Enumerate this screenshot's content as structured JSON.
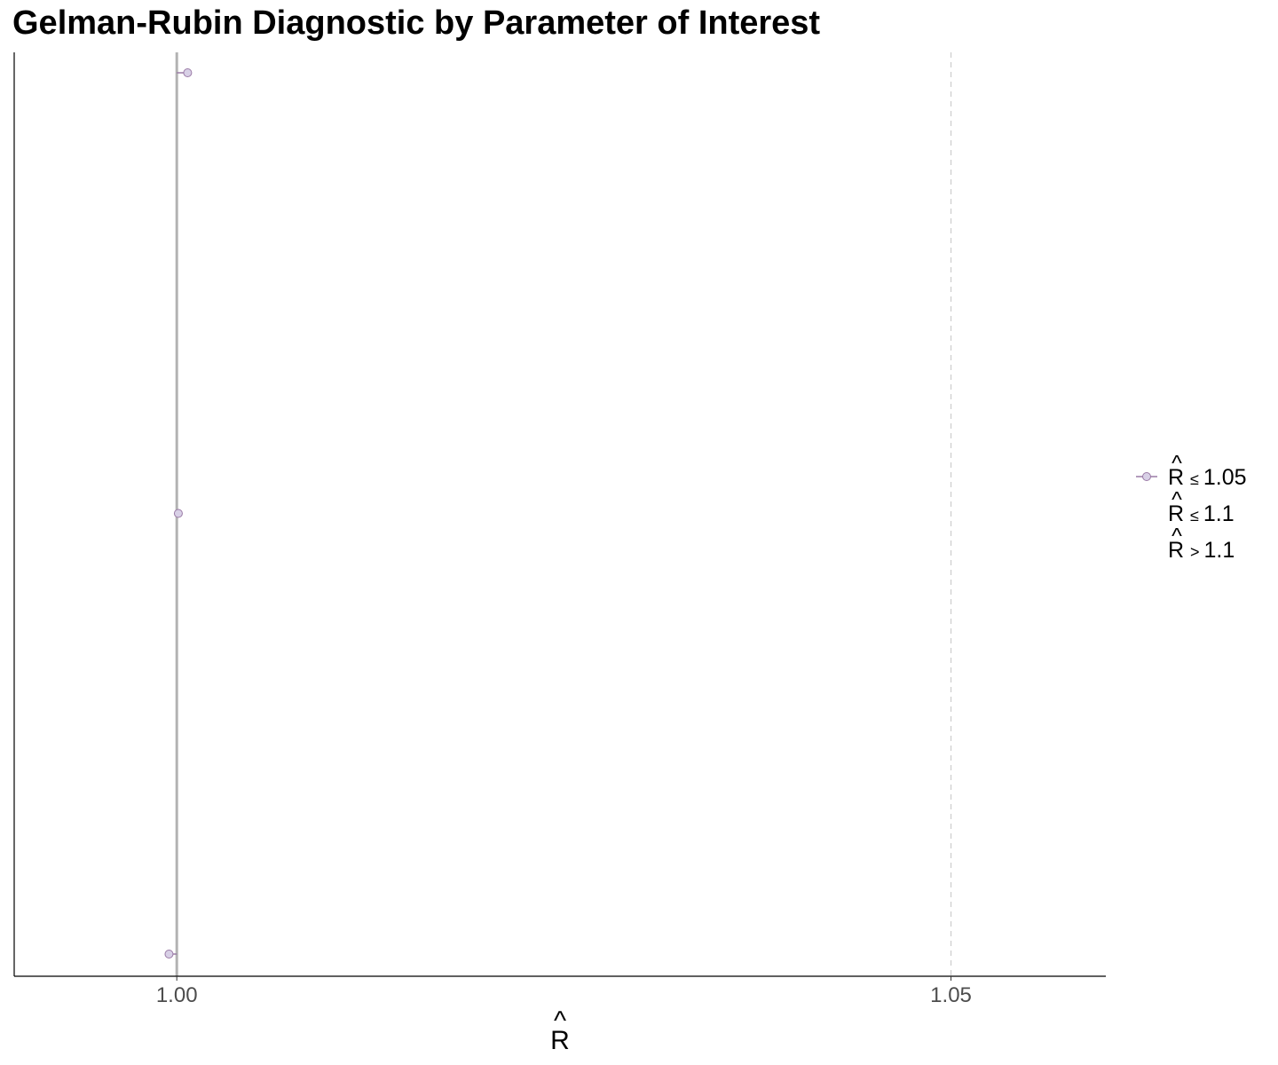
{
  "chart_data": {
    "type": "scatter",
    "title": "Gelman-Rubin Diagnostic by Parameter of Interest",
    "xlabel": "R",
    "xlabel_accent": "^",
    "ylabel": "",
    "x_ticks": [
      1.0,
      1.05
    ],
    "x_tick_labels": [
      "1.00",
      "1.05"
    ],
    "xlim": [
      0.9895,
      1.06
    ],
    "reference_lines": [
      {
        "x": 1.0,
        "style": "solid",
        "color": "#b3b3b3"
      },
      {
        "x": 1.05,
        "style": "dashed",
        "color": "#cccccc"
      }
    ],
    "points": [
      {
        "y_index": 1,
        "rhat": 1.0007
      },
      {
        "y_index": 2,
        "rhat": 1.0001
      },
      {
        "y_index": 3,
        "rhat": 0.9995
      }
    ],
    "y_count": 3,
    "grid": false,
    "legend": {
      "position": "right",
      "entries": [
        {
          "symbol": "R",
          "accent": "^",
          "relation": "≤",
          "value": "1.05",
          "color": "#d8d0e6",
          "stroke": "#9a7aa6"
        },
        {
          "symbol": "R",
          "accent": "^",
          "relation": "≤",
          "value": "1.1",
          "color": "#ffffff",
          "stroke": "none"
        },
        {
          "symbol": "R",
          "accent": "^",
          "relation": ">",
          "value": "1.1",
          "color": "#ffffff",
          "stroke": "none"
        }
      ]
    },
    "colors": {
      "point_fill": "#d8d0e6",
      "point_stroke": "#9a7aa6",
      "axis": "#000000"
    }
  }
}
